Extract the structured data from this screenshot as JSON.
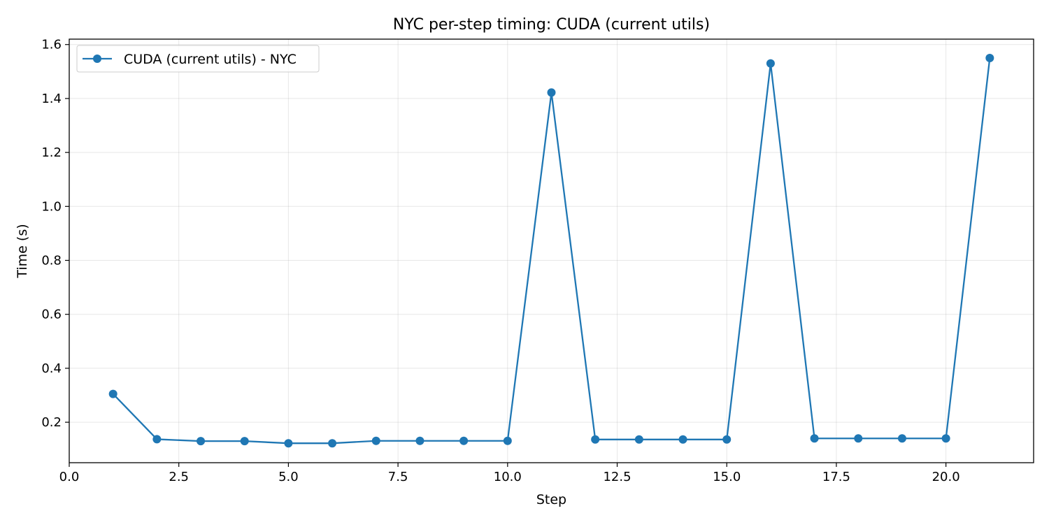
{
  "chart_data": {
    "type": "line",
    "title": "NYC per-step timing: CUDA (current utils)",
    "xlabel": "Step",
    "ylabel": "Time (s)",
    "xlim": [
      0,
      22.0
    ],
    "ylim": [
      0.05,
      1.62
    ],
    "xticks": [
      0.0,
      2.5,
      5.0,
      7.5,
      10.0,
      12.5,
      15.0,
      17.5,
      20.0
    ],
    "xtick_labels": [
      "0.0",
      "2.5",
      "5.0",
      "7.5",
      "10.0",
      "12.5",
      "15.0",
      "17.5",
      "20.0"
    ],
    "yticks": [
      0.2,
      0.4,
      0.6,
      0.8,
      1.0,
      1.2,
      1.4,
      1.6
    ],
    "ytick_labels": [
      "0.2",
      "0.4",
      "0.6",
      "0.8",
      "1.0",
      "1.2",
      "1.4",
      "1.6"
    ],
    "grid": true,
    "legend_position": "top-left",
    "x": [
      1,
      2,
      3,
      4,
      5,
      6,
      7,
      8,
      9,
      10,
      11,
      12,
      13,
      14,
      15,
      16,
      17,
      18,
      19,
      20,
      21
    ],
    "series": [
      {
        "name": "CUDA (current utils) - NYC",
        "color": "#1f77b4",
        "marker": "circle",
        "values": [
          0.305,
          0.137,
          0.13,
          0.13,
          0.122,
          0.122,
          0.131,
          0.131,
          0.131,
          0.131,
          1.422,
          0.136,
          0.136,
          0.136,
          0.136,
          1.53,
          0.14,
          0.14,
          0.14,
          0.14,
          1.55
        ]
      }
    ]
  }
}
